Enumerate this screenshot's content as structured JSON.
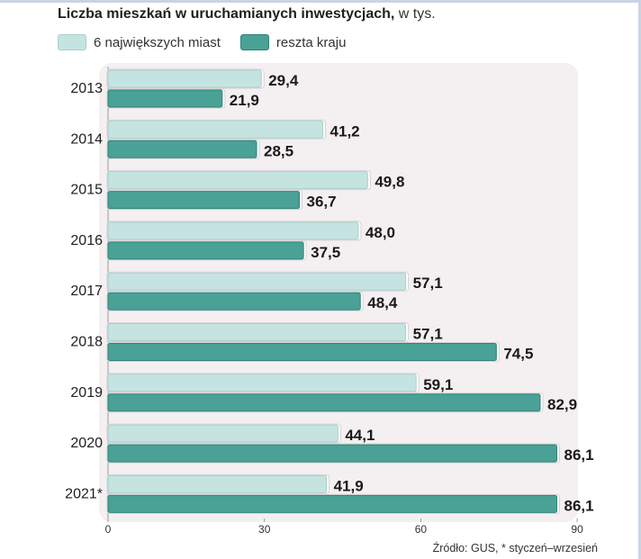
{
  "header": {
    "title_bold": "Liczba mieszkań w uruchamianych inwestycjach,",
    "title_light": " w tys."
  },
  "legend": {
    "series1": "6 największych miast",
    "series2": "reszta kraju"
  },
  "source": "Źródło: GUS, * styczeń–wrzesień",
  "colors": {
    "light_fill": "#c5e4e1",
    "light_stroke": "#a9cfcb",
    "dark_fill": "#4aa195",
    "dark_stroke": "#2f8479",
    "panel": "#f4eff1"
  },
  "chart_data": {
    "type": "bar",
    "orientation": "horizontal",
    "title": "Liczba mieszkań w uruchamianych inwestycjach, w tys.",
    "categories": [
      "2013",
      "2014",
      "2015",
      "2016",
      "2017",
      "2018",
      "2019",
      "2020",
      "2021*"
    ],
    "series": [
      {
        "name": "6 największych miast",
        "values": [
          29.4,
          41.2,
          49.8,
          48.0,
          57.1,
          57.1,
          59.1,
          44.1,
          41.9
        ],
        "labels": [
          "29,4",
          "41,2",
          "49,8",
          "48,0",
          "57,1",
          "57,1",
          "59,1",
          "44,1",
          "41,9"
        ]
      },
      {
        "name": "reszta kraju",
        "values": [
          21.9,
          28.5,
          36.7,
          37.5,
          48.4,
          74.5,
          82.9,
          86.1,
          86.1
        ],
        "labels": [
          "21,9",
          "28,5",
          "36,7",
          "37,5",
          "48,4",
          "74,5",
          "82,9",
          "86,1",
          "86,1"
        ]
      }
    ],
    "xlim": [
      0,
      90
    ],
    "ticks": [
      0,
      30,
      60,
      90
    ],
    "tick_labels": [
      "0",
      "30",
      "60",
      "90"
    ],
    "grid": false,
    "legend_position": "top-left"
  }
}
